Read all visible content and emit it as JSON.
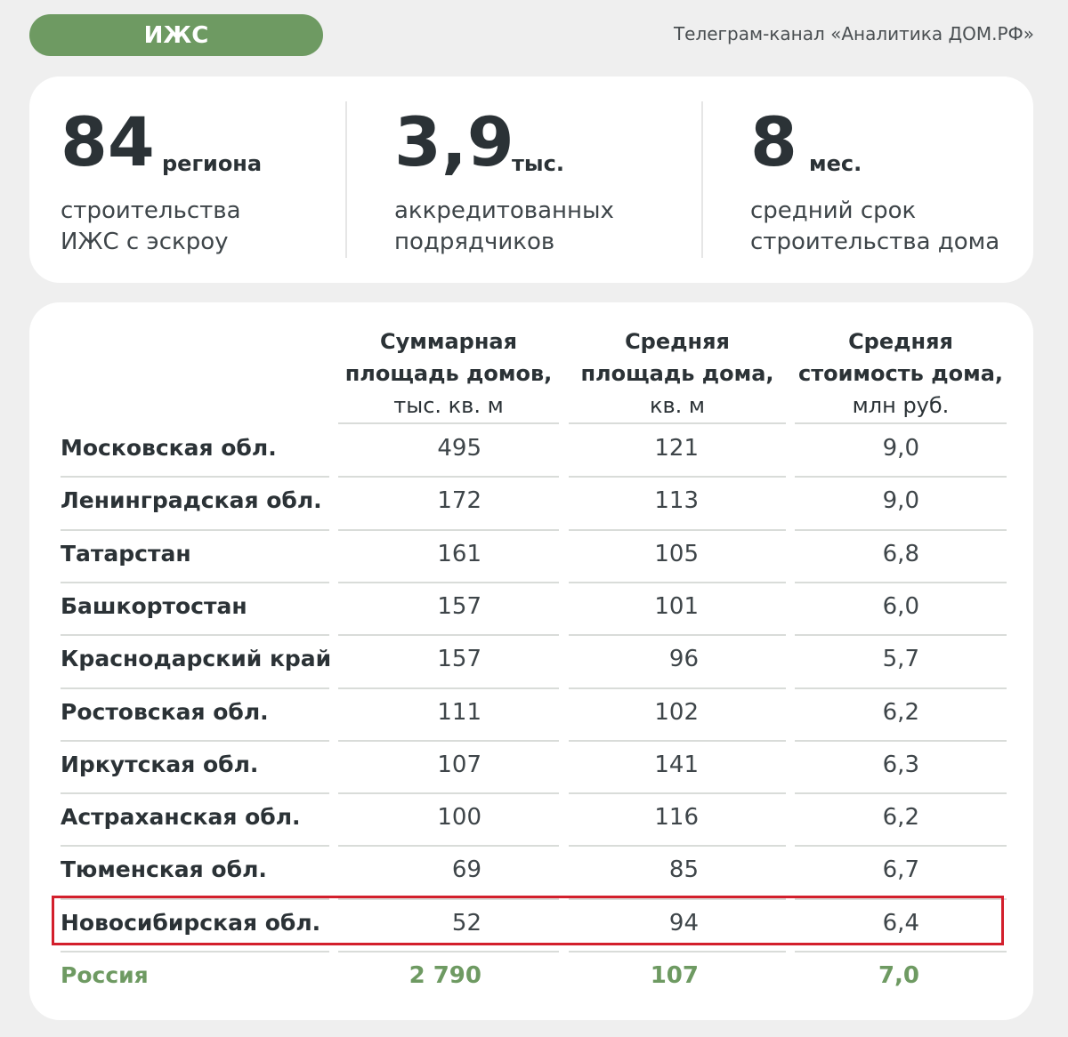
{
  "header": {
    "tag_label": "ИЖС",
    "channel": "Телеграм-канал «Аналитика ДОМ.РФ»"
  },
  "stats": [
    {
      "value": "84",
      "unit": "региона",
      "desc_line1": "строительства",
      "desc_line2": "ИЖС с эскроу"
    },
    {
      "value": "3,9",
      "unit": "тыс.",
      "desc_line1": "аккредитованных",
      "desc_line2": "подрядчиков"
    },
    {
      "value": "8",
      "unit": "мес.",
      "desc_line1": "средний срок",
      "desc_line2": "строительства дома"
    }
  ],
  "table": {
    "columns": [
      {
        "line1": "Суммарная",
        "line2": "площадь домов,",
        "line3": "тыс. кв. м"
      },
      {
        "line1": "Средняя",
        "line2": "площадь дома,",
        "line3": "кв. м"
      },
      {
        "line1": "Средняя",
        "line2": "стоимость дома,",
        "line3": "млн руб."
      }
    ],
    "rows": [
      {
        "region": "Московская обл.",
        "area_total": "495",
        "area_avg": "121",
        "cost_avg": "9,0"
      },
      {
        "region": "Ленинградская обл.",
        "area_total": "172",
        "area_avg": "113",
        "cost_avg": "9,0"
      },
      {
        "region": "Татарстан",
        "area_total": "161",
        "area_avg": "105",
        "cost_avg": "6,8"
      },
      {
        "region": "Башкортостан",
        "area_total": "157",
        "area_avg": "101",
        "cost_avg": "6,0"
      },
      {
        "region": "Краснодарский край",
        "area_total": "157",
        "area_avg": "96",
        "cost_avg": "5,7"
      },
      {
        "region": "Ростовская обл.",
        "area_total": "111",
        "area_avg": "102",
        "cost_avg": "6,2"
      },
      {
        "region": "Иркутская обл.",
        "area_total": "107",
        "area_avg": "141",
        "cost_avg": "6,3"
      },
      {
        "region": "Астраханская обл.",
        "area_total": "100",
        "area_avg": "116",
        "cost_avg": "6,2"
      },
      {
        "region": "Тюменская обл.",
        "area_total": "69",
        "area_avg": "85",
        "cost_avg": "6,7"
      },
      {
        "region": "Новосибирская обл.",
        "area_total": "52",
        "area_avg": "94",
        "cost_avg": "6,4",
        "highlighted": true
      }
    ],
    "total": {
      "region": "Россия",
      "area_total": "2 790",
      "area_avg": "107",
      "cost_avg": "7,0"
    }
  },
  "colors": {
    "accent_green": "#6e9a62",
    "highlight_red": "#d31f2c",
    "text_dark": "#2b3236"
  }
}
